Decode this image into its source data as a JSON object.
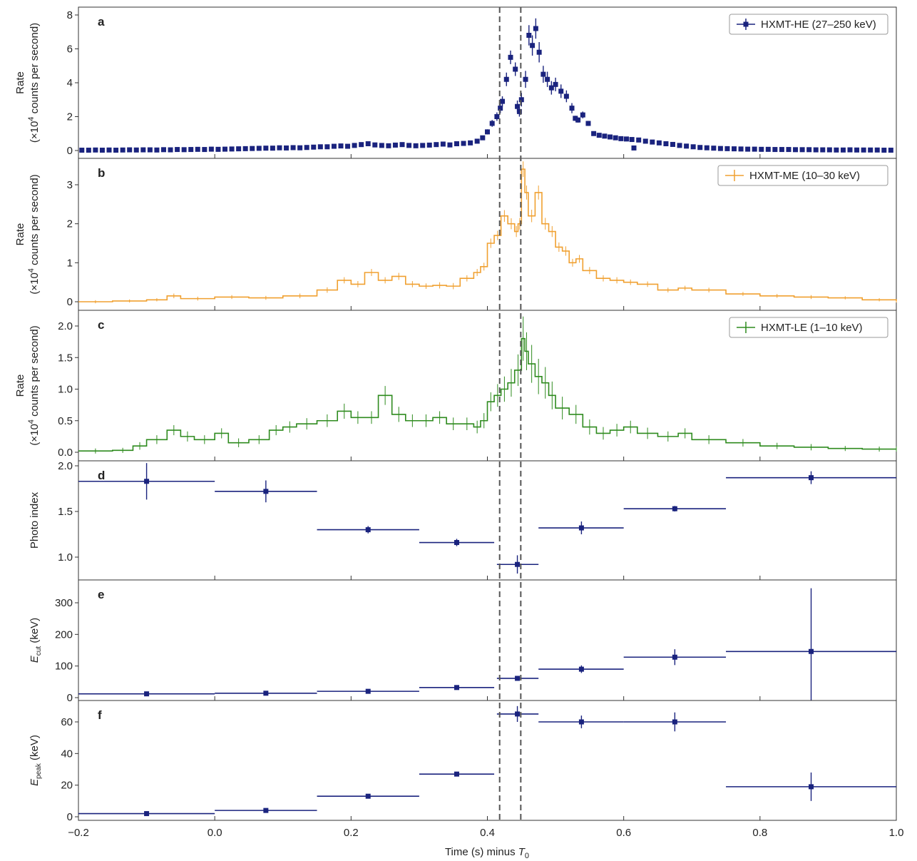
{
  "figure": {
    "x_axis": {
      "label_main": "Time (s) minus ",
      "label_var": "T",
      "label_sub": "0",
      "range": [
        -0.2,
        1.0
      ],
      "ticks": [
        "−0.2",
        "0.0",
        "0.2",
        "0.4",
        "0.6",
        "0.8",
        "1.0"
      ]
    },
    "vlines": [
      0.418,
      0.449
    ]
  },
  "chart_data": [
    {
      "type": "scatter",
      "panel": "a",
      "ylabel_line1": "Rate",
      "ylabel_line2_pre": "(×10",
      "ylabel_sup": "4",
      "ylabel_line2_post": " counts per second)",
      "ylim": [
        -0.3,
        8.3
      ],
      "yticks": [
        0,
        2,
        4,
        6,
        8
      ],
      "ytick_labels": [
        "0",
        "2",
        "4",
        "6",
        "8"
      ],
      "color": "#1a237e",
      "series": [
        {
          "name": "HXMT-HE (27–250 keV)",
          "x": [
            -0.195,
            -0.185,
            -0.175,
            -0.165,
            -0.155,
            -0.145,
            -0.135,
            -0.125,
            -0.115,
            -0.105,
            -0.095,
            -0.085,
            -0.075,
            -0.065,
            -0.055,
            -0.045,
            -0.035,
            -0.025,
            -0.015,
            -0.005,
            0.005,
            0.015,
            0.025,
            0.035,
            0.045,
            0.055,
            0.065,
            0.075,
            0.085,
            0.095,
            0.105,
            0.115,
            0.125,
            0.135,
            0.145,
            0.155,
            0.165,
            0.175,
            0.185,
            0.195,
            0.205,
            0.215,
            0.225,
            0.235,
            0.245,
            0.255,
            0.265,
            0.275,
            0.285,
            0.295,
            0.305,
            0.315,
            0.325,
            0.335,
            0.345,
            0.355,
            0.365,
            0.375,
            0.385,
            0.393,
            0.4,
            0.407,
            0.414,
            0.419,
            0.422,
            0.428,
            0.434,
            0.441,
            0.444,
            0.447,
            0.45,
            0.456,
            0.461,
            0.466,
            0.471,
            0.476,
            0.482,
            0.488,
            0.494,
            0.5,
            0.508,
            0.516,
            0.524,
            0.529,
            0.533,
            0.54,
            0.548,
            0.556,
            0.564,
            0.572,
            0.58,
            0.588,
            0.596,
            0.604,
            0.612,
            0.615,
            0.622,
            0.632,
            0.642,
            0.652,
            0.662,
            0.672,
            0.682,
            0.692,
            0.702,
            0.712,
            0.722,
            0.732,
            0.742,
            0.752,
            0.762,
            0.772,
            0.782,
            0.792,
            0.802,
            0.812,
            0.822,
            0.832,
            0.842,
            0.852,
            0.862,
            0.872,
            0.882,
            0.892,
            0.902,
            0.912,
            0.922,
            0.932,
            0.942,
            0.952,
            0.962,
            0.972,
            0.982,
            0.992
          ],
          "y": [
            0.02,
            0.02,
            0.03,
            0.02,
            0.03,
            0.02,
            0.03,
            0.04,
            0.03,
            0.04,
            0.04,
            0.03,
            0.05,
            0.04,
            0.06,
            0.05,
            0.06,
            0.07,
            0.06,
            0.08,
            0.07,
            0.08,
            0.09,
            0.1,
            0.11,
            0.12,
            0.13,
            0.14,
            0.14,
            0.16,
            0.15,
            0.17,
            0.16,
            0.18,
            0.2,
            0.22,
            0.22,
            0.25,
            0.27,
            0.25,
            0.3,
            0.35,
            0.4,
            0.33,
            0.3,
            0.28,
            0.32,
            0.35,
            0.3,
            0.28,
            0.3,
            0.32,
            0.35,
            0.38,
            0.33,
            0.4,
            0.42,
            0.45,
            0.55,
            0.75,
            1.1,
            1.6,
            2.0,
            2.5,
            2.9,
            4.2,
            5.5,
            4.8,
            2.6,
            2.3,
            3.0,
            4.2,
            6.8,
            6.2,
            7.2,
            5.8,
            4.5,
            4.2,
            3.7,
            3.9,
            3.5,
            3.2,
            2.5,
            1.9,
            1.8,
            2.1,
            1.6,
            1.0,
            0.9,
            0.85,
            0.8,
            0.75,
            0.7,
            0.68,
            0.65,
            0.15,
            0.62,
            0.55,
            0.5,
            0.45,
            0.4,
            0.36,
            0.3,
            0.26,
            0.22,
            0.18,
            0.16,
            0.14,
            0.12,
            0.11,
            0.1,
            0.09,
            0.08,
            0.08,
            0.07,
            0.07,
            0.06,
            0.06,
            0.06,
            0.05,
            0.05,
            0.05,
            0.04,
            0.04,
            0.04,
            0.03,
            0.03,
            0.04,
            0.03,
            0.03,
            0.03,
            0.03,
            0.02,
            0.02
          ],
          "yerr": [
            0.06,
            0.06,
            0.06,
            0.06,
            0.06,
            0.06,
            0.06,
            0.06,
            0.06,
            0.06,
            0.06,
            0.06,
            0.06,
            0.06,
            0.06,
            0.06,
            0.06,
            0.06,
            0.06,
            0.06,
            0.06,
            0.06,
            0.06,
            0.06,
            0.06,
            0.06,
            0.06,
            0.06,
            0.06,
            0.06,
            0.06,
            0.06,
            0.06,
            0.06,
            0.06,
            0.06,
            0.06,
            0.06,
            0.08,
            0.08,
            0.08,
            0.08,
            0.1,
            0.08,
            0.08,
            0.08,
            0.08,
            0.08,
            0.08,
            0.08,
            0.08,
            0.08,
            0.08,
            0.08,
            0.08,
            0.08,
            0.08,
            0.08,
            0.1,
            0.12,
            0.15,
            0.2,
            0.25,
            0.3,
            0.3,
            0.4,
            0.4,
            0.4,
            0.35,
            0.3,
            0.4,
            0.5,
            0.6,
            0.6,
            0.6,
            0.6,
            0.5,
            0.45,
            0.4,
            0.4,
            0.4,
            0.35,
            0.3,
            0.15,
            0.15,
            0.2,
            0.15,
            0.12,
            0.1,
            0.1,
            0.1,
            0.1,
            0.1,
            0.1,
            0.1,
            0.08,
            0.1,
            0.1,
            0.08,
            0.08,
            0.08,
            0.08,
            0.08,
            0.06,
            0.06,
            0.06,
            0.06,
            0.06,
            0.06,
            0.06,
            0.06,
            0.06,
            0.06,
            0.06,
            0.06,
            0.06,
            0.06,
            0.06,
            0.06,
            0.06,
            0.06,
            0.06,
            0.06,
            0.06,
            0.06,
            0.06,
            0.06,
            0.06,
            0.06,
            0.06,
            0.06,
            0.06,
            0.06,
            0.06
          ]
        }
      ]
    },
    {
      "type": "line",
      "panel": "b",
      "ylabel_line1": "Rate",
      "ylabel_line2_pre": "(×10",
      "ylabel_sup": "4",
      "ylabel_line2_post": " counts per second)",
      "ylim": [
        -0.15,
        3.65
      ],
      "yticks": [
        0,
        1,
        2,
        3
      ],
      "ytick_labels": [
        "0",
        "1",
        "2",
        "3"
      ],
      "color": "#f0a030",
      "series": [
        {
          "name": "HXMT-ME (10–30 keV)",
          "x": [
            -0.2,
            -0.15,
            -0.1,
            -0.07,
            -0.05,
            0.0,
            0.05,
            0.1,
            0.15,
            0.18,
            0.2,
            0.22,
            0.24,
            0.26,
            0.28,
            0.3,
            0.32,
            0.34,
            0.36,
            0.38,
            0.39,
            0.4,
            0.41,
            0.42,
            0.43,
            0.44,
            0.445,
            0.45,
            0.455,
            0.46,
            0.47,
            0.48,
            0.49,
            0.5,
            0.51,
            0.52,
            0.53,
            0.54,
            0.56,
            0.58,
            0.6,
            0.62,
            0.65,
            0.68,
            0.7,
            0.75,
            0.8,
            0.85,
            0.9,
            0.95,
            1.0
          ],
          "y": [
            0.0,
            0.02,
            0.05,
            0.15,
            0.08,
            0.12,
            0.1,
            0.15,
            0.3,
            0.55,
            0.45,
            0.75,
            0.55,
            0.65,
            0.45,
            0.4,
            0.42,
            0.4,
            0.6,
            0.75,
            0.9,
            1.5,
            1.7,
            2.2,
            2.0,
            1.8,
            2.0,
            3.4,
            2.8,
            2.2,
            2.8,
            2.0,
            1.8,
            1.4,
            1.3,
            1.0,
            1.1,
            0.8,
            0.6,
            0.55,
            0.5,
            0.45,
            0.3,
            0.35,
            0.3,
            0.2,
            0.15,
            0.12,
            0.1,
            0.05,
            0.02
          ],
          "yerr": [
            0.04,
            0.04,
            0.04,
            0.06,
            0.05,
            0.05,
            0.05,
            0.06,
            0.07,
            0.08,
            0.08,
            0.09,
            0.08,
            0.09,
            0.08,
            0.07,
            0.08,
            0.08,
            0.08,
            0.09,
            0.1,
            0.12,
            0.12,
            0.15,
            0.14,
            0.14,
            0.15,
            0.2,
            0.18,
            0.16,
            0.18,
            0.15,
            0.14,
            0.12,
            0.12,
            0.1,
            0.1,
            0.09,
            0.08,
            0.08,
            0.07,
            0.07,
            0.06,
            0.06,
            0.06,
            0.05,
            0.05,
            0.05,
            0.04,
            0.04,
            0.04
          ]
        }
      ]
    },
    {
      "type": "line",
      "panel": "c",
      "ylabel_line1": "Rate",
      "ylabel_line2_pre": "(×10",
      "ylabel_sup": "4",
      "ylabel_line2_post": " counts per second)",
      "ylim": [
        -0.08,
        2.23
      ],
      "yticks": [
        0,
        0.5,
        1.0,
        1.5,
        2.0
      ],
      "ytick_labels": [
        "0.0",
        "0.5",
        "1.0",
        "1.5",
        "2.0"
      ],
      "color": "#2e8b1e",
      "series": [
        {
          "name": "HXMT-LE (1–10 keV)",
          "x": [
            -0.2,
            -0.15,
            -0.12,
            -0.1,
            -0.07,
            -0.05,
            -0.03,
            0.0,
            0.02,
            0.05,
            0.08,
            0.1,
            0.12,
            0.15,
            0.18,
            0.2,
            0.22,
            0.24,
            0.26,
            0.28,
            0.3,
            0.32,
            0.34,
            0.36,
            0.38,
            0.39,
            0.4,
            0.41,
            0.42,
            0.43,
            0.44,
            0.45,
            0.455,
            0.46,
            0.47,
            0.48,
            0.49,
            0.5,
            0.52,
            0.54,
            0.56,
            0.58,
            0.6,
            0.62,
            0.65,
            0.68,
            0.7,
            0.75,
            0.8,
            0.85,
            0.9,
            0.95,
            1.0
          ],
          "y": [
            0.02,
            0.03,
            0.1,
            0.2,
            0.35,
            0.25,
            0.2,
            0.3,
            0.15,
            0.2,
            0.35,
            0.4,
            0.45,
            0.5,
            0.65,
            0.55,
            0.55,
            0.9,
            0.6,
            0.5,
            0.5,
            0.55,
            0.45,
            0.45,
            0.4,
            0.5,
            0.8,
            0.9,
            1.0,
            1.1,
            1.3,
            1.8,
            1.6,
            1.4,
            1.2,
            1.1,
            0.9,
            0.7,
            0.6,
            0.4,
            0.3,
            0.35,
            0.4,
            0.3,
            0.25,
            0.3,
            0.2,
            0.15,
            0.1,
            0.08,
            0.06,
            0.05,
            0.05
          ],
          "yerr": [
            0.04,
            0.04,
            0.06,
            0.07,
            0.08,
            0.08,
            0.07,
            0.08,
            0.07,
            0.07,
            0.08,
            0.09,
            0.09,
            0.1,
            0.12,
            0.1,
            0.1,
            0.15,
            0.12,
            0.1,
            0.1,
            0.1,
            0.1,
            0.1,
            0.1,
            0.12,
            0.15,
            0.18,
            0.2,
            0.22,
            0.25,
            0.35,
            0.3,
            0.3,
            0.28,
            0.25,
            0.22,
            0.18,
            0.15,
            0.12,
            0.1,
            0.1,
            0.1,
            0.09,
            0.08,
            0.08,
            0.07,
            0.06,
            0.05,
            0.05,
            0.04,
            0.04,
            0.04
          ]
        }
      ]
    },
    {
      "type": "scatter",
      "panel": "d",
      "ylabel_line1": "Photo index",
      "ylim": [
        0.75,
        2.05
      ],
      "yticks": [
        1.0,
        1.5,
        2.0
      ],
      "ytick_labels": [
        "1.0",
        "1.5",
        "2.0"
      ],
      "color": "#1a237e",
      "series": [
        {
          "x": [
            -0.1,
            0.075,
            0.225,
            0.355,
            0.444,
            0.538,
            0.675,
            0.875
          ],
          "xerr_lo": [
            0.1,
            0.075,
            0.075,
            0.055,
            0.03,
            0.063,
            0.075,
            0.125
          ],
          "xerr_hi": [
            0.1,
            0.075,
            0.075,
            0.055,
            0.031,
            0.062,
            0.075,
            0.125
          ],
          "y": [
            1.83,
            1.72,
            1.3,
            1.16,
            0.92,
            1.32,
            1.53,
            1.87
          ],
          "yerr": [
            0.2,
            0.12,
            0.04,
            0.04,
            0.1,
            0.07,
            0.03,
            0.07
          ]
        }
      ]
    },
    {
      "type": "scatter",
      "panel": "e",
      "ylabel_var": "E",
      "ylabel_sub": "cut",
      "ylabel_post": " (keV)",
      "ylim": [
        -5,
        370
      ],
      "yticks": [
        0,
        100,
        200,
        300
      ],
      "ytick_labels": [
        "0",
        "100",
        "200",
        "300"
      ],
      "color": "#1a237e",
      "series": [
        {
          "x": [
            -0.1,
            0.075,
            0.225,
            0.355,
            0.444,
            0.538,
            0.675,
            0.875
          ],
          "xerr_lo": [
            0.1,
            0.075,
            0.075,
            0.055,
            0.03,
            0.063,
            0.075,
            0.125
          ],
          "xerr_hi": [
            0.1,
            0.075,
            0.075,
            0.055,
            0.031,
            0.062,
            0.075,
            0.125
          ],
          "y": [
            12,
            14,
            20,
            32,
            61,
            90,
            128,
            146
          ],
          "yerr": [
            5,
            5,
            5,
            5,
            6,
            12,
            25,
            200
          ]
        }
      ]
    },
    {
      "type": "scatter",
      "panel": "f",
      "ylabel_var": "E",
      "ylabel_sub": "peak",
      "ylabel_post": " (keV)",
      "ylim": [
        -2,
        72
      ],
      "yticks": [
        0,
        20,
        40,
        60
      ],
      "ytick_labels": [
        "0",
        "20",
        "40",
        "60"
      ],
      "color": "#1a237e",
      "series": [
        {
          "x": [
            -0.1,
            0.075,
            0.225,
            0.355,
            0.444,
            0.538,
            0.675,
            0.875
          ],
          "xerr_lo": [
            0.1,
            0.075,
            0.075,
            0.055,
            0.03,
            0.063,
            0.075,
            0.125
          ],
          "xerr_hi": [
            0.1,
            0.075,
            0.075,
            0.055,
            0.031,
            0.062,
            0.075,
            0.125
          ],
          "y": [
            2,
            4,
            13,
            27,
            65,
            60,
            60,
            19
          ],
          "yerr": [
            1,
            1,
            1,
            1,
            5,
            4,
            6,
            9
          ]
        }
      ]
    }
  ]
}
